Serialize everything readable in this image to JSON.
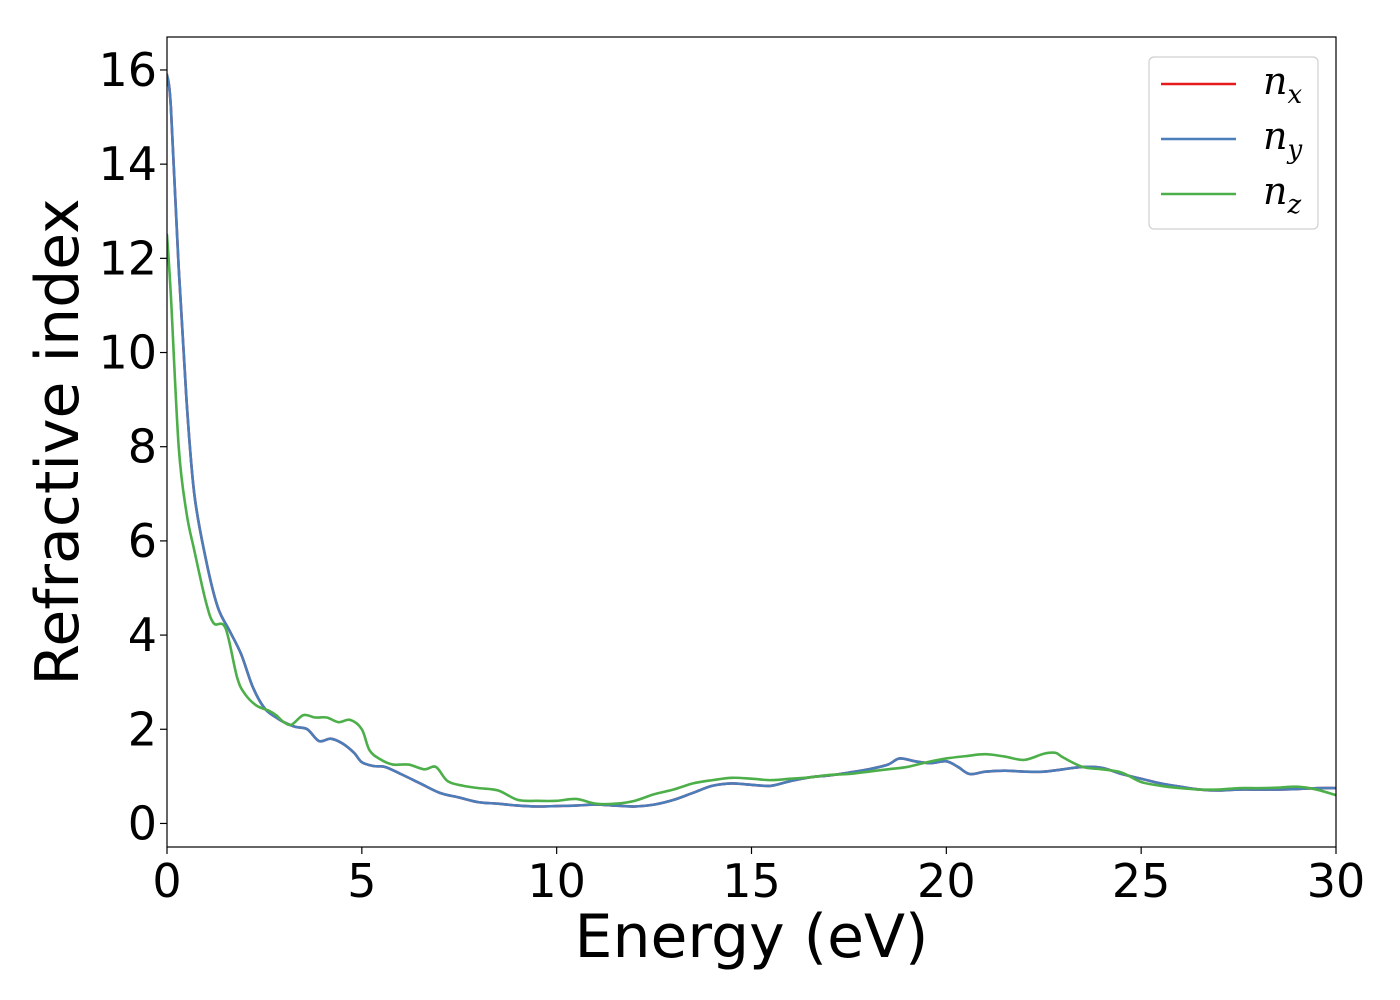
{
  "chart_data": {
    "type": "line",
    "xlabel": "Energy (eV)",
    "ylabel": "Refractive index",
    "xlim": [
      0,
      30
    ],
    "ylim": [
      -0.5,
      16.7
    ],
    "xticks": [
      0,
      5,
      10,
      15,
      20,
      25,
      30
    ],
    "yticks": [
      0,
      2,
      4,
      6,
      8,
      10,
      12,
      14,
      16
    ],
    "grid": false,
    "legend_position": "top-right",
    "series": [
      {
        "name": "n_x",
        "legend_base": "n",
        "legend_sub": "x",
        "color": "#e41a1c",
        "x": [
          0,
          0.1,
          0.3,
          0.5,
          0.7,
          1.0,
          1.3,
          1.6,
          1.9,
          2.2,
          2.5,
          2.8,
          3.0,
          3.3,
          3.6,
          3.9,
          4.2,
          4.5,
          4.8,
          5.0,
          5.3,
          5.6,
          6.0,
          6.5,
          7.0,
          7.5,
          8.0,
          8.5,
          9.0,
          9.5,
          10.0,
          10.5,
          11.0,
          11.5,
          12.0,
          12.5,
          13.0,
          13.5,
          14.0,
          14.5,
          15.0,
          15.5,
          16.0,
          16.5,
          17.0,
          17.5,
          18.0,
          18.5,
          18.8,
          19.2,
          19.6,
          20.0,
          20.3,
          20.6,
          21.0,
          21.5,
          22.0,
          22.5,
          23.0,
          23.5,
          24.0,
          24.5,
          25.0,
          25.5,
          26.0,
          26.5,
          27.0,
          27.5,
          28.0,
          28.5,
          29.0,
          29.5,
          30.0
        ],
        "y": [
          15.9,
          15.2,
          11.8,
          9.0,
          7.0,
          5.6,
          4.6,
          4.1,
          3.6,
          2.9,
          2.45,
          2.25,
          2.15,
          2.05,
          2.0,
          1.75,
          1.8,
          1.7,
          1.5,
          1.3,
          1.22,
          1.2,
          1.05,
          0.85,
          0.65,
          0.55,
          0.45,
          0.42,
          0.38,
          0.36,
          0.37,
          0.38,
          0.4,
          0.38,
          0.36,
          0.4,
          0.5,
          0.65,
          0.8,
          0.85,
          0.82,
          0.8,
          0.9,
          0.98,
          1.02,
          1.08,
          1.15,
          1.25,
          1.38,
          1.32,
          1.28,
          1.32,
          1.2,
          1.05,
          1.1,
          1.12,
          1.1,
          1.1,
          1.15,
          1.2,
          1.18,
          1.05,
          0.95,
          0.85,
          0.78,
          0.72,
          0.7,
          0.72,
          0.72,
          0.72,
          0.73,
          0.75,
          0.75
        ]
      },
      {
        "name": "n_y",
        "legend_base": "n",
        "legend_sub": "y",
        "color": "#4a7ebb",
        "x": [
          0,
          0.1,
          0.3,
          0.5,
          0.7,
          1.0,
          1.3,
          1.6,
          1.9,
          2.2,
          2.5,
          2.8,
          3.0,
          3.3,
          3.6,
          3.9,
          4.2,
          4.5,
          4.8,
          5.0,
          5.3,
          5.6,
          6.0,
          6.5,
          7.0,
          7.5,
          8.0,
          8.5,
          9.0,
          9.5,
          10.0,
          10.5,
          11.0,
          11.5,
          12.0,
          12.5,
          13.0,
          13.5,
          14.0,
          14.5,
          15.0,
          15.5,
          16.0,
          16.5,
          17.0,
          17.5,
          18.0,
          18.5,
          18.8,
          19.2,
          19.6,
          20.0,
          20.3,
          20.6,
          21.0,
          21.5,
          22.0,
          22.5,
          23.0,
          23.5,
          24.0,
          24.5,
          25.0,
          25.5,
          26.0,
          26.5,
          27.0,
          27.5,
          28.0,
          28.5,
          29.0,
          29.5,
          30.0
        ],
        "y": [
          15.9,
          15.2,
          11.8,
          9.0,
          7.0,
          5.6,
          4.6,
          4.1,
          3.6,
          2.9,
          2.45,
          2.25,
          2.15,
          2.05,
          2.0,
          1.75,
          1.8,
          1.7,
          1.5,
          1.3,
          1.22,
          1.2,
          1.05,
          0.85,
          0.65,
          0.55,
          0.45,
          0.42,
          0.38,
          0.36,
          0.37,
          0.38,
          0.4,
          0.38,
          0.36,
          0.4,
          0.5,
          0.65,
          0.8,
          0.85,
          0.82,
          0.8,
          0.9,
          0.98,
          1.02,
          1.08,
          1.15,
          1.25,
          1.38,
          1.32,
          1.28,
          1.32,
          1.2,
          1.05,
          1.1,
          1.12,
          1.1,
          1.1,
          1.15,
          1.2,
          1.18,
          1.05,
          0.95,
          0.85,
          0.78,
          0.72,
          0.7,
          0.72,
          0.72,
          0.72,
          0.73,
          0.75,
          0.75
        ]
      },
      {
        "name": "n_z",
        "legend_base": "n",
        "legend_sub": "z",
        "color": "#4daf4a",
        "x": [
          0,
          0.1,
          0.3,
          0.5,
          0.7,
          1.0,
          1.2,
          1.5,
          1.8,
          2.0,
          2.3,
          2.6,
          2.8,
          3.0,
          3.2,
          3.5,
          3.8,
          4.1,
          4.4,
          4.7,
          5.0,
          5.2,
          5.5,
          5.8,
          6.2,
          6.6,
          6.9,
          7.2,
          7.6,
          8.0,
          8.5,
          9.0,
          9.5,
          10.0,
          10.5,
          11.0,
          11.5,
          12.0,
          12.5,
          13.0,
          13.5,
          14.0,
          14.5,
          15.0,
          15.5,
          16.0,
          16.5,
          17.0,
          17.5,
          18.0,
          18.5,
          19.0,
          19.5,
          20.0,
          20.5,
          21.0,
          21.5,
          22.0,
          22.5,
          22.8,
          23.0,
          23.5,
          24.0,
          24.5,
          25.0,
          25.5,
          26.0,
          26.5,
          27.0,
          27.5,
          28.0,
          28.5,
          29.0,
          29.5,
          30.0
        ],
        "y": [
          12.5,
          11.2,
          8.0,
          6.6,
          5.8,
          4.7,
          4.25,
          4.15,
          3.1,
          2.75,
          2.5,
          2.4,
          2.3,
          2.15,
          2.1,
          2.3,
          2.25,
          2.25,
          2.15,
          2.2,
          2.0,
          1.55,
          1.35,
          1.25,
          1.25,
          1.15,
          1.2,
          0.9,
          0.8,
          0.75,
          0.7,
          0.5,
          0.48,
          0.48,
          0.52,
          0.42,
          0.42,
          0.48,
          0.62,
          0.72,
          0.85,
          0.92,
          0.97,
          0.95,
          0.92,
          0.95,
          0.98,
          1.03,
          1.05,
          1.1,
          1.15,
          1.2,
          1.3,
          1.38,
          1.43,
          1.47,
          1.42,
          1.35,
          1.48,
          1.5,
          1.4,
          1.2,
          1.15,
          1.08,
          0.88,
          0.8,
          0.75,
          0.72,
          0.72,
          0.75,
          0.75,
          0.76,
          0.78,
          0.72,
          0.6
        ]
      }
    ]
  }
}
